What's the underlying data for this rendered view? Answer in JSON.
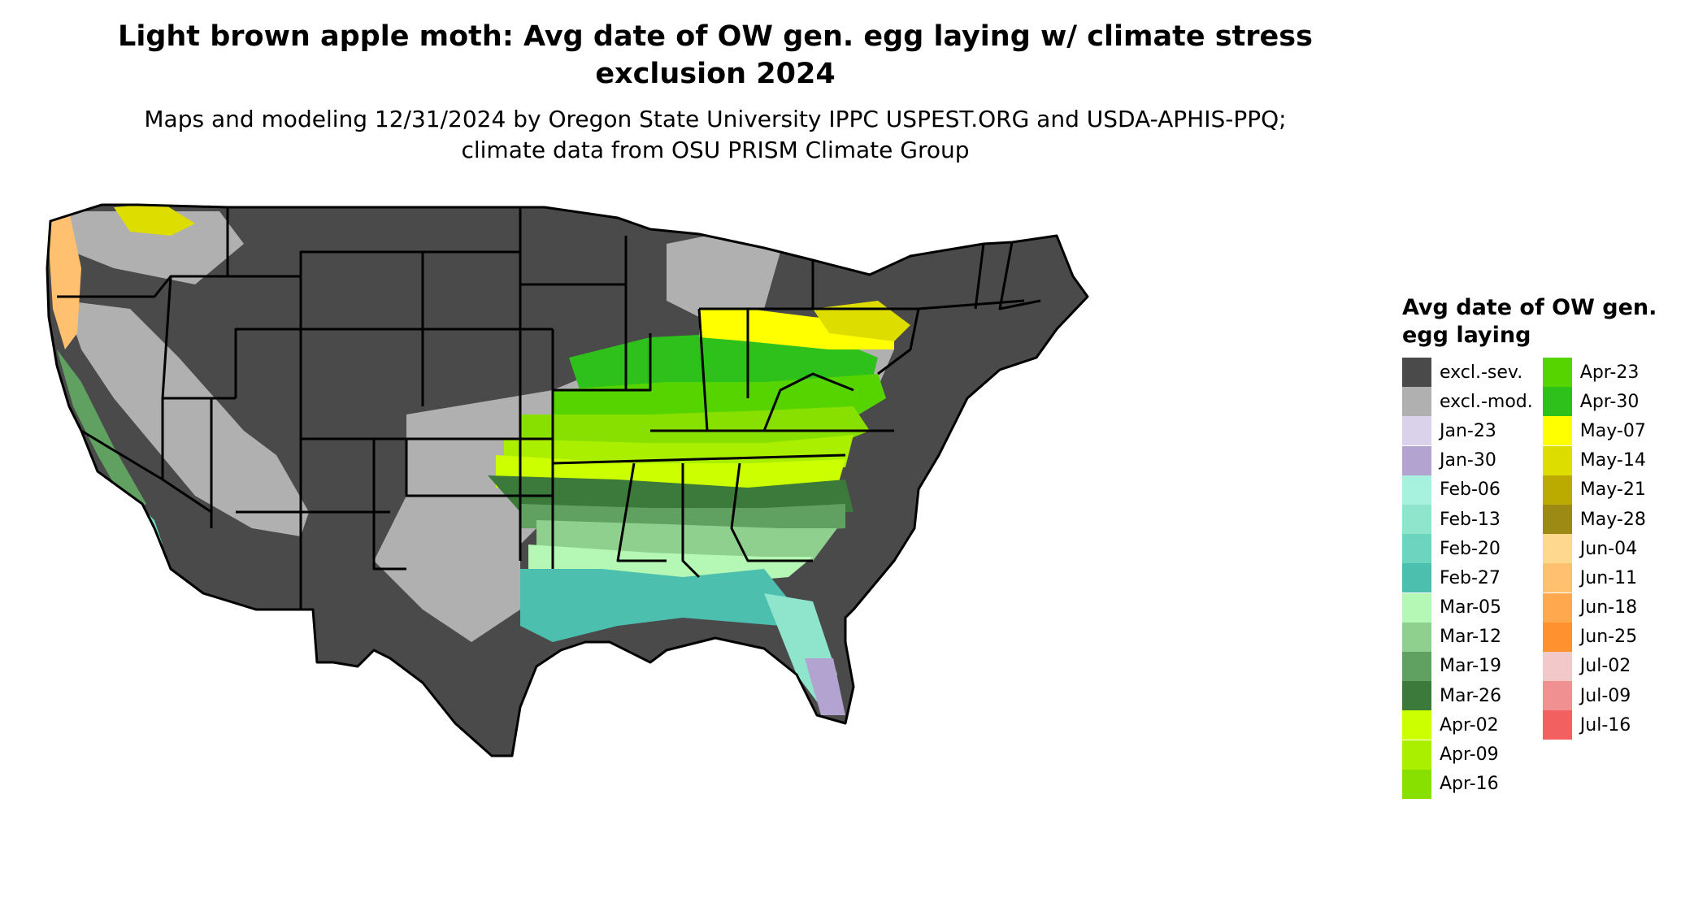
{
  "title": "Light brown apple moth: Avg date of OW gen. egg laying w/ climate stress exclusion 2024",
  "subtitle": "Maps and modeling 12/31/2024 by Oregon State University IPPC USPEST.ORG and USDA-APHIS-PPQ; climate data from OSU PRISM Climate Group",
  "legend": {
    "title": "Avg date of OW gen. egg laying",
    "column_1": [
      {
        "label": "excl.-sev.",
        "color": "#4a4a4a"
      },
      {
        "label": "excl.-mod.",
        "color": "#b0b0b0"
      },
      {
        "label": "Jan-23",
        "color": "#d9d2ea"
      },
      {
        "label": "Jan-30",
        "color": "#b2a3d0"
      },
      {
        "label": "Feb-06",
        "color": "#a6f2de"
      },
      {
        "label": "Feb-13",
        "color": "#8fe4cc"
      },
      {
        "label": "Feb-20",
        "color": "#6cd4bf"
      },
      {
        "label": "Feb-27",
        "color": "#4dbfae"
      },
      {
        "label": "Mar-05",
        "color": "#b5f7b5"
      },
      {
        "label": "Mar-12",
        "color": "#8fd08f"
      },
      {
        "label": "Mar-19",
        "color": "#60a060"
      },
      {
        "label": "Mar-26",
        "color": "#3b7a3b"
      },
      {
        "label": "Apr-02",
        "color": "#ccff00"
      },
      {
        "label": "Apr-09",
        "color": "#aaee00"
      },
      {
        "label": "Apr-16",
        "color": "#88e000"
      }
    ],
    "column_2": [
      {
        "label": "Apr-23",
        "color": "#55d400"
      },
      {
        "label": "Apr-30",
        "color": "#2ec11b"
      },
      {
        "label": "May-07",
        "color": "#ffff00"
      },
      {
        "label": "May-14",
        "color": "#dddd00"
      },
      {
        "label": "May-21",
        "color": "#bbaa00"
      },
      {
        "label": "May-28",
        "color": "#9c8a14"
      },
      {
        "label": "Jun-04",
        "color": "#ffd890"
      },
      {
        "label": "Jun-11",
        "color": "#ffc070"
      },
      {
        "label": "Jun-18",
        "color": "#ffa84d"
      },
      {
        "label": "Jun-25",
        "color": "#ff922e"
      },
      {
        "label": "Jul-02",
        "color": "#f2c8c8"
      },
      {
        "label": "Jul-09",
        "color": "#f09090"
      },
      {
        "label": "Jul-16",
        "color": "#f26060"
      }
    ]
  }
}
